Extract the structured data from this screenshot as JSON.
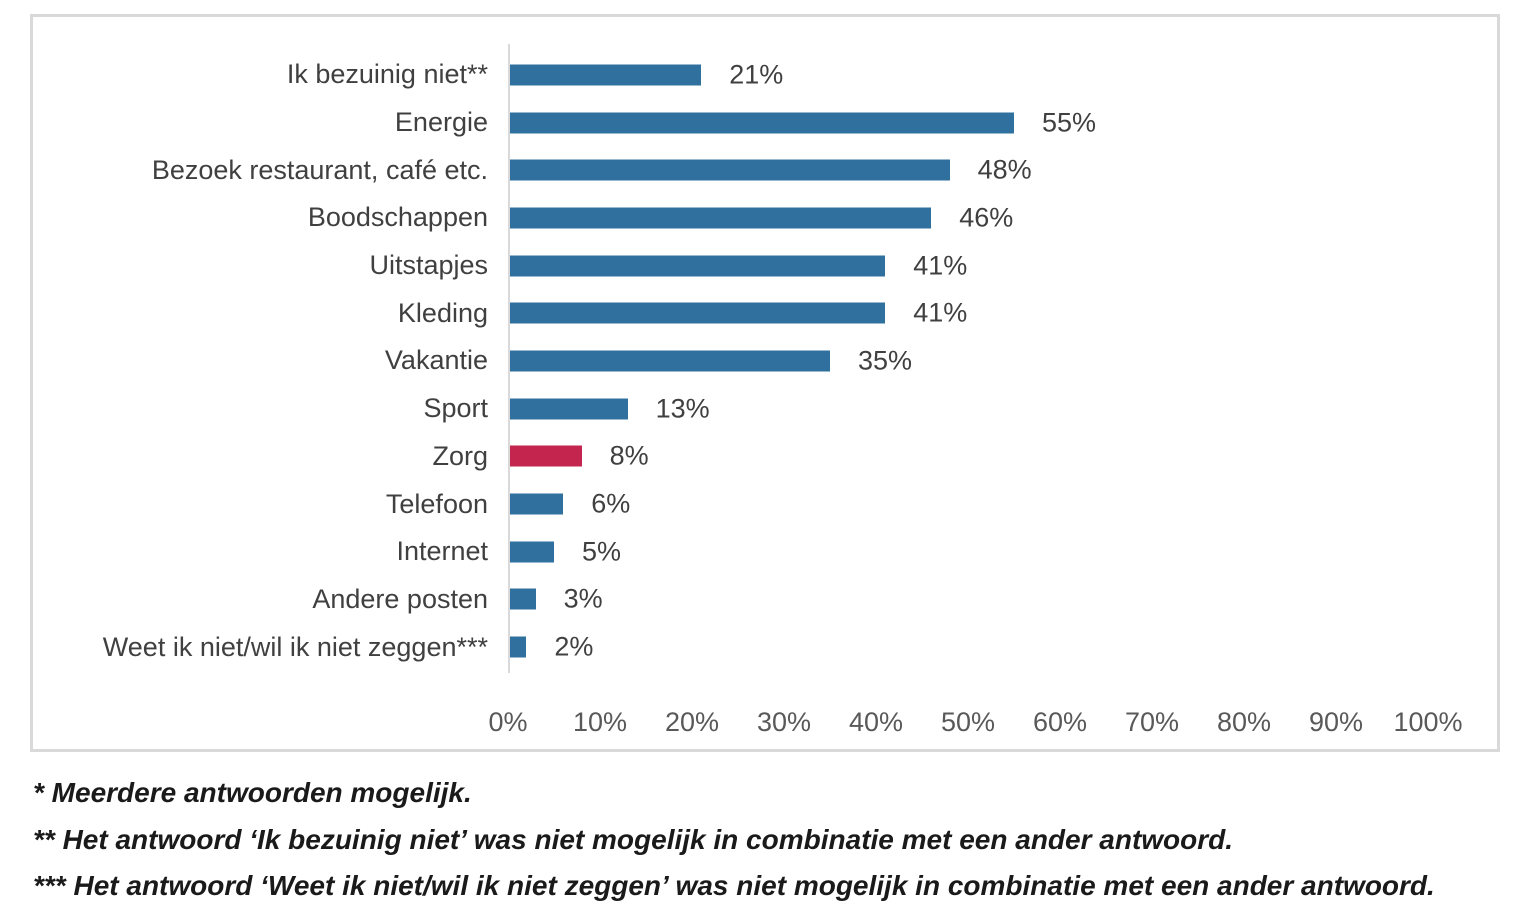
{
  "chart_data": {
    "type": "bar",
    "orientation": "horizontal",
    "title": "",
    "xlabel": "",
    "ylabel": "",
    "categories": [
      "Ik bezuinig niet**",
      "Energie",
      "Bezoek restaurant, café etc.",
      "Boodschappen",
      "Uitstapjes",
      "Kleding",
      "Vakantie",
      "Sport",
      "Zorg",
      "Telefoon",
      "Internet",
      "Andere posten",
      "Weet ik niet/wil ik niet zeggen***"
    ],
    "values": [
      21,
      55,
      48,
      46,
      41,
      41,
      35,
      13,
      8,
      6,
      5,
      3,
      2
    ],
    "value_labels": [
      "21%",
      "55%",
      "48%",
      "46%",
      "41%",
      "41%",
      "35%",
      "13%",
      "8%",
      "6%",
      "5%",
      "3%",
      "2%"
    ],
    "bar_color": "#2F709F",
    "highlight_color": "#C3254F",
    "highlight_index": 8,
    "highlight_category": "Zorg",
    "x_tick_labels": [
      "0%",
      "10%",
      "20%",
      "30%",
      "40%",
      "50%",
      "60%",
      "70%",
      "80%",
      "90%",
      "100%"
    ],
    "xlim": [
      0,
      100
    ],
    "grid": "off",
    "legend": "none",
    "axis_line_color": "#D9D9D9",
    "label_color": "#404040",
    "tick_color": "#595959",
    "border_color": "#D9D9D9"
  },
  "footnotes": [
    "* Meerdere antwoorden mogelijk.",
    "** Het antwoord ‘Ik bezuinig niet’ was niet mogelijk in combinatie met een ander antwoord.",
    "*** Het antwoord ‘Weet ik niet/wil ik niet zeggen’ was niet mogelijk in combinatie met een ander antwoord."
  ]
}
